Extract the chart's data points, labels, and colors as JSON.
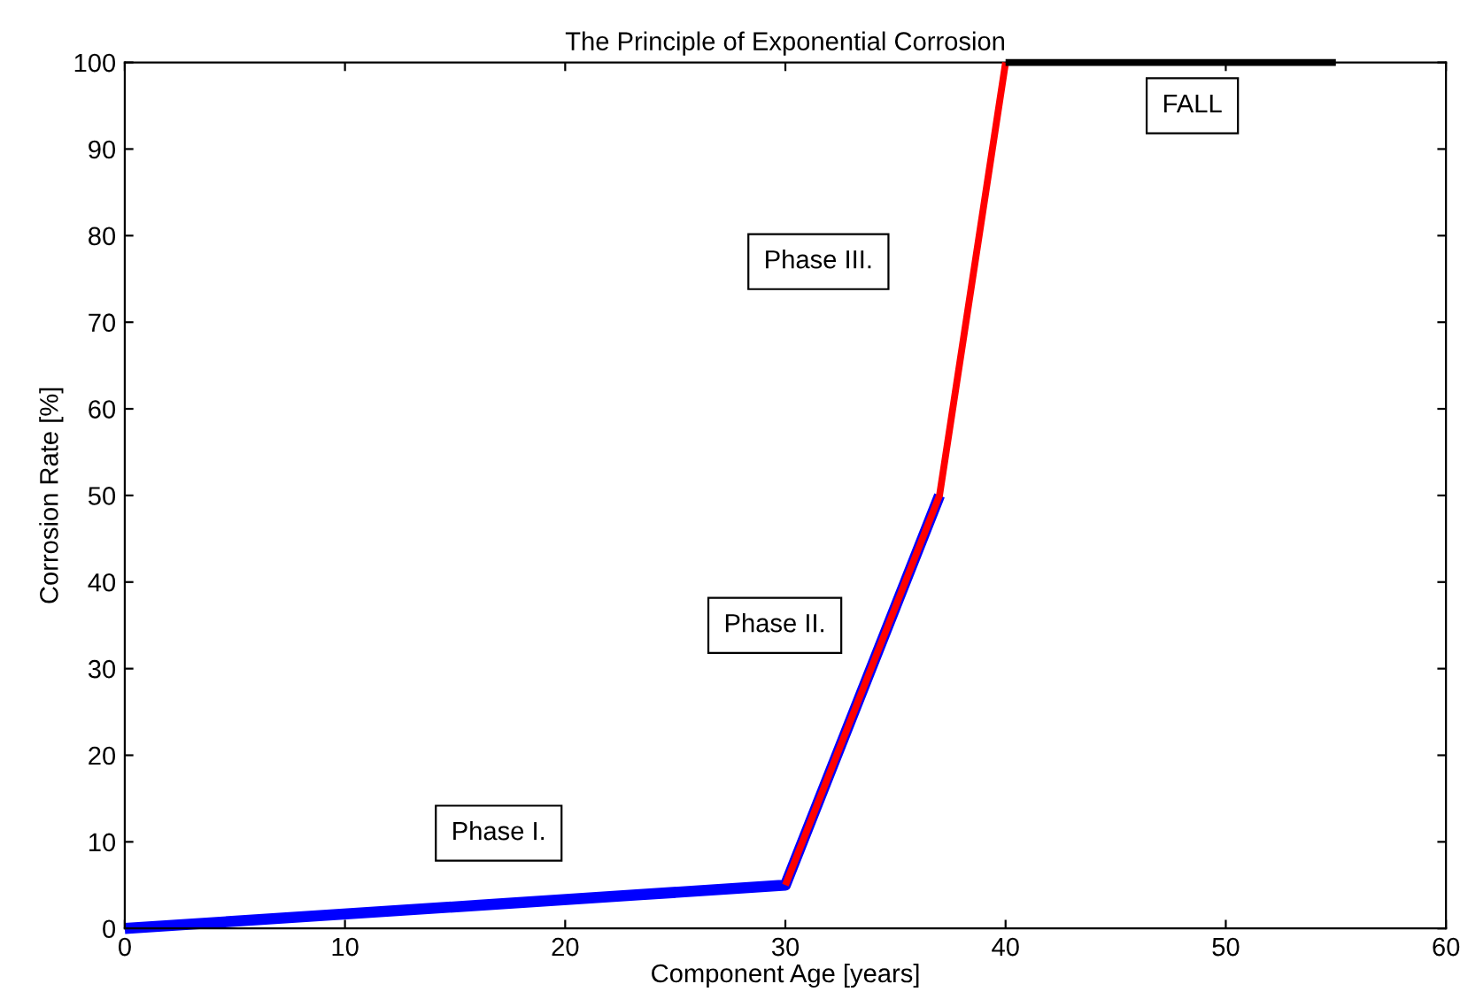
{
  "chart_data": {
    "type": "line",
    "title": "The Principle of Exponential Corrosion",
    "xlabel": "Component Age [years]",
    "ylabel": "Corrosion Rate [%]",
    "series": [
      {
        "color": "#0000ff",
        "x": [
          0,
          30,
          37
        ],
        "values": [
          0,
          5,
          50
        ]
      },
      {
        "color": "#ff0000",
        "x": [
          30,
          37,
          40
        ],
        "values": [
          5,
          50,
          100
        ]
      },
      {
        "color": "#000000",
        "x": [
          40,
          55
        ],
        "values": [
          100,
          100
        ]
      }
    ],
    "annotations": [
      "Phase I.",
      "Phase II.",
      "Phase III.",
      "FALL"
    ],
    "xlim": [
      0,
      60
    ],
    "xticks": [
      0,
      10,
      20,
      30,
      40,
      50,
      60
    ],
    "ylim": [
      0,
      100
    ],
    "yticks": [
      0,
      10,
      20,
      30,
      40,
      50,
      60,
      70,
      80,
      90,
      100
    ],
    "grid": false,
    "legend": false,
    "marker": "none",
    "line_style": "solid"
  }
}
